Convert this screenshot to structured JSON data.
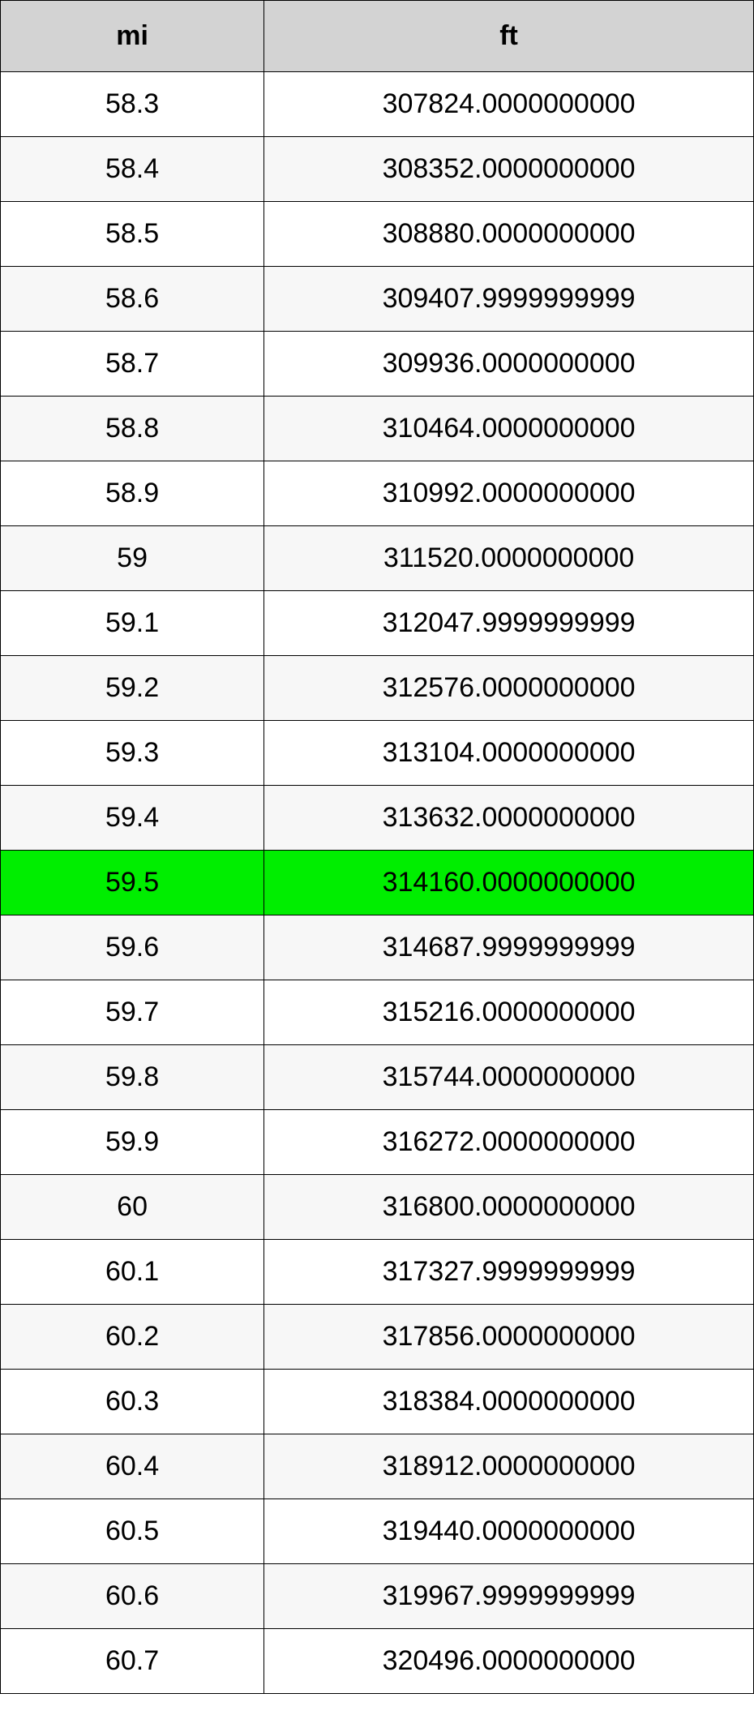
{
  "table": {
    "type": "table",
    "columns": [
      {
        "key": "mi",
        "label": "mi",
        "width_percent": 35,
        "align": "center"
      },
      {
        "key": "ft",
        "label": "ft",
        "width_percent": 65,
        "align": "center"
      }
    ],
    "header_bg": "#d3d3d3",
    "border_color": "#000000",
    "row_bg_odd": "#ffffff",
    "row_bg_even": "#f7f7f7",
    "highlight_bg": "#00ee00",
    "header_fontsize": 34,
    "cell_fontsize": 34,
    "font_family": "Arial, Helvetica, sans-serif",
    "highlight_index": 12,
    "rows": [
      {
        "mi": "58.3",
        "ft": "307824.0000000000"
      },
      {
        "mi": "58.4",
        "ft": "308352.0000000000"
      },
      {
        "mi": "58.5",
        "ft": "308880.0000000000"
      },
      {
        "mi": "58.6",
        "ft": "309407.9999999999"
      },
      {
        "mi": "58.7",
        "ft": "309936.0000000000"
      },
      {
        "mi": "58.8",
        "ft": "310464.0000000000"
      },
      {
        "mi": "58.9",
        "ft": "310992.0000000000"
      },
      {
        "mi": "59",
        "ft": "311520.0000000000"
      },
      {
        "mi": "59.1",
        "ft": "312047.9999999999"
      },
      {
        "mi": "59.2",
        "ft": "312576.0000000000"
      },
      {
        "mi": "59.3",
        "ft": "313104.0000000000"
      },
      {
        "mi": "59.4",
        "ft": "313632.0000000000"
      },
      {
        "mi": "59.5",
        "ft": "314160.0000000000"
      },
      {
        "mi": "59.6",
        "ft": "314687.9999999999"
      },
      {
        "mi": "59.7",
        "ft": "315216.0000000000"
      },
      {
        "mi": "59.8",
        "ft": "315744.0000000000"
      },
      {
        "mi": "59.9",
        "ft": "316272.0000000000"
      },
      {
        "mi": "60",
        "ft": "316800.0000000000"
      },
      {
        "mi": "60.1",
        "ft": "317327.9999999999"
      },
      {
        "mi": "60.2",
        "ft": "317856.0000000000"
      },
      {
        "mi": "60.3",
        "ft": "318384.0000000000"
      },
      {
        "mi": "60.4",
        "ft": "318912.0000000000"
      },
      {
        "mi": "60.5",
        "ft": "319440.0000000000"
      },
      {
        "mi": "60.6",
        "ft": "319967.9999999999"
      },
      {
        "mi": "60.7",
        "ft": "320496.0000000000"
      }
    ]
  }
}
